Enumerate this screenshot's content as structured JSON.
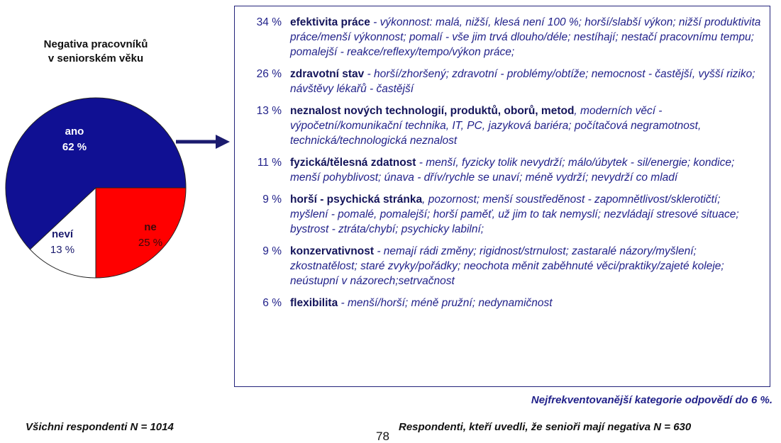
{
  "chart_data": {
    "type": "pie",
    "title": "Negativa pracovníků\nv seniorském věku",
    "categories": [
      "ano",
      "ne",
      "neví"
    ],
    "values": [
      62,
      25,
      13
    ],
    "value_labels": [
      "62 %",
      "25 %",
      "13 %"
    ],
    "colors": [
      "#101093",
      "#ff0000",
      "#ffffff"
    ]
  },
  "list": {
    "rows": [
      {
        "share": "34 %",
        "heading": "efektivita práce",
        "text": " - výkonnost: malá, nižší, klesá není 100 %; horší/slabší výkon; nižší produktivita práce/menší výkonnost; pomalí - vše jim trvá dlouho/déle; nestíhají; nestačí pracovnímu tempu; pomalejší - reakce/reflexy/tempo/výkon práce;"
      },
      {
        "share": "26 %",
        "heading": "zdravotní stav",
        "text": " - horší/zhoršený; zdravotní - problémy/obtíže; nemocnost - častější, vyšší riziko; návštěvy lékařů - častější"
      },
      {
        "share": "13 %",
        "heading": "neznalost nových technologií, produktů, oborů, metod",
        "text": ", moderních věcí - výpočetní/komunikační technika, IT, PC, jazyková bariéra; počítačová negramotnost, technická/technologická neznalost"
      },
      {
        "share": "11 %",
        "heading": "fyzická/tělesná zdatnost",
        "text": " - menší, fyzicky tolik nevydrží; málo/úbytek - sil/energie; kondice; menší pohyblivost; únava - dřív/rychle se unaví; méně vydrží; nevydrží co mladí"
      },
      {
        "share": "9 %",
        "heading": "horší - psychická stránka",
        "text": ", pozornost; menší soustředěnost - zapomnětlivost/sklerotičtí; myšlení - pomalé, pomalejší; horší paměť, už jim to tak nemyslí; nezvládají stresové situace; bystrost - ztráta/chybí; psychicky labilní;"
      },
      {
        "share": "9 %",
        "heading": "konzervativnost",
        "text": " - nemají rádi změny; rigidnost/strnulost; zastaralé názory/myšlení; zkostnatělost; staré zvyky/pořádky; neochota měnit zaběhnuté věci/praktiky/zajeté koleje; neústupní v názorech;setrvačnost"
      },
      {
        "share": "6 %",
        "heading": "flexibilita",
        "text": " - menší/horší; méně pružní; nedynamičnost"
      }
    ]
  },
  "notes": {
    "categories_note": "Nejfrekventovanější kategorie odpovědí do 6 %.",
    "all_respondents": "Všichni respondenti N = 1014",
    "page_number": "78",
    "subset_respondents": "Respondenti, kteří uvedli, že senioři mají negativa N = 630"
  }
}
